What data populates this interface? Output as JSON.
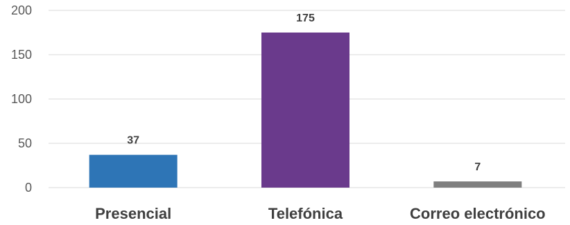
{
  "chart_data": {
    "type": "bar",
    "categories": [
      "Presencial",
      "Telefónica",
      "Correo electrónico"
    ],
    "values": [
      37,
      175,
      7
    ],
    "data_labels": [
      "37",
      "175",
      "7"
    ],
    "colors": [
      "#2e75b6",
      "#6a3a8c",
      "#7f7f7f"
    ],
    "ylim": [
      0,
      200
    ],
    "yticks": [
      0,
      50,
      100,
      150,
      200
    ],
    "ytick_labels": [
      "0",
      "50",
      "100",
      "150",
      "200"
    ],
    "grid": true,
    "legend": "none"
  }
}
